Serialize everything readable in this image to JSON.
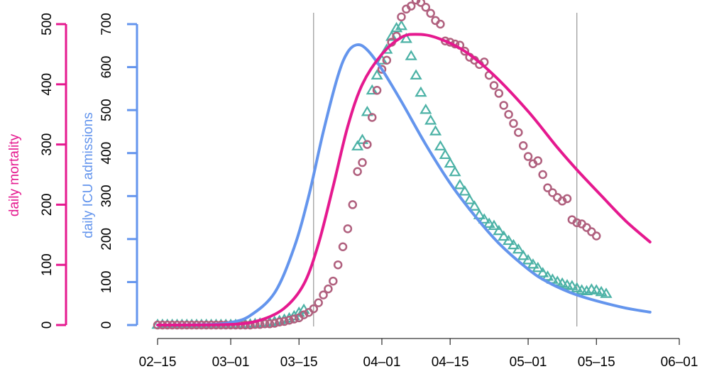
{
  "colors": {
    "mortality": "#e5198f",
    "icu": "#6495ed",
    "mortality_points": "#b0607e",
    "icu_points": "#4cb2a6",
    "vline": "#808080"
  },
  "chart_data": {
    "type": "line",
    "title": "",
    "x_axis": {
      "type": "date",
      "range": [
        "2020-02-15",
        "2020-06-01"
      ],
      "tick_labels": [
        "02–15",
        "03–01",
        "03–15",
        "04–01",
        "04–15",
        "05–01",
        "05–15",
        "06–01"
      ],
      "tick_dates": [
        "2020-02-15",
        "2020-03-01",
        "2020-03-15",
        "2020-04-01",
        "2020-04-15",
        "2020-05-01",
        "2020-05-15",
        "2020-06-01"
      ]
    },
    "y_axes": [
      {
        "label": "daily mortality",
        "range": [
          0,
          500
        ],
        "ticks": [
          0,
          100,
          200,
          300,
          400,
          500
        ],
        "tick_labels": [
          "0",
          "100",
          "200",
          "300",
          "400",
          "500"
        ],
        "color_key": "mortality"
      },
      {
        "label": "daily ICU admissions",
        "range": [
          0,
          700
        ],
        "ticks": [
          0,
          100,
          200,
          300,
          400,
          500,
          600,
          700
        ],
        "tick_labels": [
          "0",
          "100",
          "200",
          "300",
          "400",
          "500",
          "600",
          "700"
        ],
        "color_key": "icu"
      }
    ],
    "vertical_lines": [
      "2020-03-18",
      "2020-05-11"
    ],
    "series": [
      {
        "kind": "line",
        "axis": "icu",
        "color_key": "icu",
        "points": [
          [
            "2020-02-15",
            0
          ],
          [
            "2020-02-25",
            1
          ],
          [
            "2020-03-01",
            6
          ],
          [
            "2020-03-05",
            22
          ],
          [
            "2020-03-10",
            75
          ],
          [
            "2020-03-14",
            180
          ],
          [
            "2020-03-17",
            300
          ],
          [
            "2020-03-20",
            450
          ],
          [
            "2020-03-23",
            580
          ],
          [
            "2020-03-25",
            635
          ],
          [
            "2020-03-27",
            652
          ],
          [
            "2020-03-29",
            640
          ],
          [
            "2020-04-01",
            595
          ],
          [
            "2020-04-05",
            520
          ],
          [
            "2020-04-10",
            420
          ],
          [
            "2020-04-15",
            330
          ],
          [
            "2020-04-20",
            255
          ],
          [
            "2020-04-25",
            190
          ],
          [
            "2020-05-01",
            130
          ],
          [
            "2020-05-05",
            100
          ],
          [
            "2020-05-11",
            70
          ],
          [
            "2020-05-20",
            42
          ],
          [
            "2020-05-26",
            30
          ]
        ]
      },
      {
        "kind": "line",
        "axis": "mortality",
        "color_key": "mortality",
        "points": [
          [
            "2020-02-15",
            0
          ],
          [
            "2020-03-01",
            1
          ],
          [
            "2020-03-07",
            8
          ],
          [
            "2020-03-12",
            28
          ],
          [
            "2020-03-16",
            68
          ],
          [
            "2020-03-19",
            135
          ],
          [
            "2020-03-22",
            230
          ],
          [
            "2020-03-25",
            330
          ],
          [
            "2020-03-28",
            400
          ],
          [
            "2020-04-01",
            450
          ],
          [
            "2020-04-05",
            478
          ],
          [
            "2020-04-08",
            483
          ],
          [
            "2020-04-12",
            478
          ],
          [
            "2020-04-18",
            455
          ],
          [
            "2020-04-24",
            415
          ],
          [
            "2020-05-01",
            355
          ],
          [
            "2020-05-07",
            295
          ],
          [
            "2020-05-11",
            258
          ],
          [
            "2020-05-16",
            215
          ],
          [
            "2020-05-21",
            173
          ],
          [
            "2020-05-26",
            138
          ]
        ]
      },
      {
        "kind": "scatter",
        "marker": "triangle",
        "axis": "icu",
        "color_key": "icu_points",
        "points": [
          [
            "2020-02-15",
            0
          ],
          [
            "2020-02-16",
            0
          ],
          [
            "2020-02-17",
            0
          ],
          [
            "2020-02-18",
            0
          ],
          [
            "2020-02-19",
            0
          ],
          [
            "2020-02-20",
            0
          ],
          [
            "2020-02-21",
            0
          ],
          [
            "2020-02-22",
            0
          ],
          [
            "2020-02-23",
            0
          ],
          [
            "2020-02-24",
            0
          ],
          [
            "2020-02-25",
            0
          ],
          [
            "2020-02-26",
            0
          ],
          [
            "2020-02-27",
            0
          ],
          [
            "2020-02-28",
            0
          ],
          [
            "2020-02-29",
            0
          ],
          [
            "2020-03-01",
            0
          ],
          [
            "2020-03-02",
            0
          ],
          [
            "2020-03-03",
            0
          ],
          [
            "2020-03-04",
            1
          ],
          [
            "2020-03-05",
            1
          ],
          [
            "2020-03-06",
            2
          ],
          [
            "2020-03-07",
            3
          ],
          [
            "2020-03-08",
            4
          ],
          [
            "2020-03-09",
            5
          ],
          [
            "2020-03-10",
            7
          ],
          [
            "2020-03-11",
            9
          ],
          [
            "2020-03-12",
            12
          ],
          [
            "2020-03-13",
            15
          ],
          [
            "2020-03-14",
            20
          ],
          [
            "2020-03-15",
            28
          ],
          [
            "2020-03-16",
            35
          ],
          [
            "2020-03-27",
            415
          ],
          [
            "2020-03-28",
            430
          ],
          [
            "2020-03-29",
            495
          ],
          [
            "2020-03-30",
            545
          ],
          [
            "2020-03-31",
            580
          ],
          [
            "2020-04-01",
            615
          ],
          [
            "2020-04-02",
            640
          ],
          [
            "2020-04-03",
            670
          ],
          [
            "2020-04-04",
            690
          ],
          [
            "2020-04-05",
            695
          ],
          [
            "2020-04-06",
            665
          ],
          [
            "2020-04-07",
            625
          ],
          [
            "2020-04-08",
            580
          ],
          [
            "2020-04-09",
            540
          ],
          [
            "2020-04-10",
            500
          ],
          [
            "2020-04-11",
            475
          ],
          [
            "2020-04-12",
            450
          ],
          [
            "2020-04-13",
            415
          ],
          [
            "2020-04-14",
            395
          ],
          [
            "2020-04-15",
            375
          ],
          [
            "2020-04-16",
            355
          ],
          [
            "2020-04-17",
            325
          ],
          [
            "2020-04-18",
            310
          ],
          [
            "2020-04-19",
            290
          ],
          [
            "2020-04-20",
            275
          ],
          [
            "2020-04-21",
            255
          ],
          [
            "2020-04-22",
            245
          ],
          [
            "2020-04-23",
            235
          ],
          [
            "2020-04-24",
            230
          ],
          [
            "2020-04-25",
            218
          ],
          [
            "2020-04-26",
            205
          ],
          [
            "2020-04-27",
            195
          ],
          [
            "2020-04-28",
            185
          ],
          [
            "2020-04-29",
            175
          ],
          [
            "2020-04-30",
            160
          ],
          [
            "2020-05-01",
            150
          ],
          [
            "2020-05-02",
            140
          ],
          [
            "2020-05-03",
            132
          ],
          [
            "2020-05-04",
            120
          ],
          [
            "2020-05-05",
            112
          ],
          [
            "2020-05-06",
            105
          ],
          [
            "2020-05-07",
            100
          ],
          [
            "2020-05-08",
            96
          ],
          [
            "2020-05-09",
            92
          ],
          [
            "2020-05-10",
            90
          ],
          [
            "2020-05-11",
            85
          ],
          [
            "2020-05-12",
            80
          ],
          [
            "2020-05-13",
            78
          ],
          [
            "2020-05-14",
            82
          ],
          [
            "2020-05-15",
            80
          ],
          [
            "2020-05-16",
            76
          ],
          [
            "2020-05-17",
            72
          ]
        ]
      },
      {
        "kind": "scatter",
        "marker": "circle",
        "axis": "mortality",
        "color_key": "mortality_points",
        "points": [
          [
            "2020-02-15",
            0
          ],
          [
            "2020-02-16",
            0
          ],
          [
            "2020-02-17",
            0
          ],
          [
            "2020-02-18",
            0
          ],
          [
            "2020-02-19",
            0
          ],
          [
            "2020-02-20",
            0
          ],
          [
            "2020-02-21",
            0
          ],
          [
            "2020-02-22",
            0
          ],
          [
            "2020-02-23",
            0
          ],
          [
            "2020-02-24",
            0
          ],
          [
            "2020-02-25",
            0
          ],
          [
            "2020-02-26",
            0
          ],
          [
            "2020-02-27",
            0
          ],
          [
            "2020-02-28",
            0
          ],
          [
            "2020-02-29",
            0
          ],
          [
            "2020-03-01",
            0
          ],
          [
            "2020-03-02",
            0
          ],
          [
            "2020-03-03",
            0
          ],
          [
            "2020-03-04",
            0
          ],
          [
            "2020-03-05",
            0
          ],
          [
            "2020-03-06",
            1
          ],
          [
            "2020-03-07",
            1
          ],
          [
            "2020-03-08",
            2
          ],
          [
            "2020-03-09",
            2
          ],
          [
            "2020-03-10",
            3
          ],
          [
            "2020-03-11",
            5
          ],
          [
            "2020-03-12",
            6
          ],
          [
            "2020-03-13",
            8
          ],
          [
            "2020-03-14",
            10
          ],
          [
            "2020-03-15",
            12
          ],
          [
            "2020-03-16",
            17
          ],
          [
            "2020-03-17",
            21
          ],
          [
            "2020-03-18",
            27
          ],
          [
            "2020-03-19",
            37
          ],
          [
            "2020-03-20",
            50
          ],
          [
            "2020-03-21",
            60
          ],
          [
            "2020-03-22",
            73
          ],
          [
            "2020-03-23",
            100
          ],
          [
            "2020-03-24",
            130
          ],
          [
            "2020-03-25",
            160
          ],
          [
            "2020-03-26",
            200
          ],
          [
            "2020-03-27",
            255
          ],
          [
            "2020-03-28",
            270
          ],
          [
            "2020-03-29",
            300
          ],
          [
            "2020-03-30",
            345
          ],
          [
            "2020-03-31",
            390
          ],
          [
            "2020-04-01",
            425
          ],
          [
            "2020-04-02",
            440
          ],
          [
            "2020-04-03",
            470
          ],
          [
            "2020-04-04",
            480
          ],
          [
            "2020-04-05",
            512
          ],
          [
            "2020-04-06",
            525
          ],
          [
            "2020-04-07",
            530
          ],
          [
            "2020-04-08",
            540
          ],
          [
            "2020-04-09",
            536
          ],
          [
            "2020-04-10",
            528
          ],
          [
            "2020-04-11",
            518
          ],
          [
            "2020-04-12",
            506
          ],
          [
            "2020-04-13",
            500
          ],
          [
            "2020-04-14",
            472
          ],
          [
            "2020-04-15",
            470
          ],
          [
            "2020-04-16",
            467
          ],
          [
            "2020-04-17",
            465
          ],
          [
            "2020-04-18",
            455
          ],
          [
            "2020-04-19",
            445
          ],
          [
            "2020-04-20",
            440
          ],
          [
            "2020-04-21",
            433
          ],
          [
            "2020-04-22",
            437
          ],
          [
            "2020-04-23",
            415
          ],
          [
            "2020-04-24",
            398
          ],
          [
            "2020-04-25",
            385
          ],
          [
            "2020-04-26",
            365
          ],
          [
            "2020-04-27",
            350
          ],
          [
            "2020-04-28",
            335
          ],
          [
            "2020-04-29",
            320
          ],
          [
            "2020-04-30",
            298
          ],
          [
            "2020-05-01",
            280
          ],
          [
            "2020-05-02",
            268
          ],
          [
            "2020-05-03",
            273
          ],
          [
            "2020-05-04",
            250
          ],
          [
            "2020-05-05",
            228
          ],
          [
            "2020-05-06",
            220
          ],
          [
            "2020-05-07",
            212
          ],
          [
            "2020-05-08",
            206
          ],
          [
            "2020-05-09",
            210
          ],
          [
            "2020-05-10",
            175
          ],
          [
            "2020-05-11",
            170
          ],
          [
            "2020-05-12",
            168
          ],
          [
            "2020-05-13",
            162
          ],
          [
            "2020-05-14",
            155
          ],
          [
            "2020-05-15",
            148
          ]
        ]
      }
    ]
  }
}
